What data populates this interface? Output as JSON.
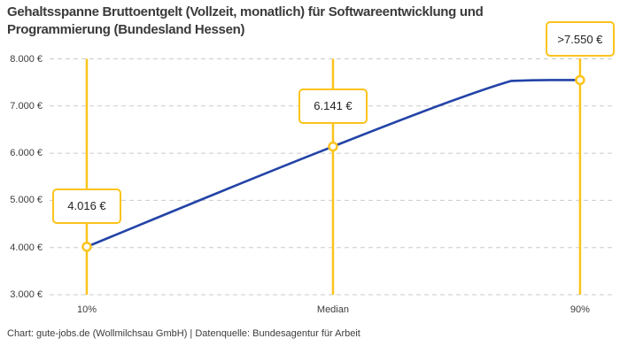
{
  "title": "Gehaltsspanne Bruttoentgelt (Vollzeit, monatlich) für Softwareentwicklung und Programmierung (Bundesland Hessen)",
  "credit": "Chart: gute-jobs.de (Wollmilchsau GmbH) | Datenquelle: Bundesagentur für Arbeit",
  "colors": {
    "accent_yellow": "#fbc31c",
    "line_blue": "#2343a7",
    "grid_gray": "#cbcbcb",
    "title_text": "#3a3a3a",
    "axis_text": "#3c3c3c",
    "label_text": "#222222",
    "background": "#ffffff"
  },
  "chart_data": {
    "type": "line",
    "categories": [
      "10%",
      "Median",
      "90%"
    ],
    "values": [
      4016,
      6141,
      7550
    ],
    "point_labels": [
      "4.016 €",
      "6.141 €",
      ">7.550 €"
    ],
    "last_value_capped": true,
    "y_tick_labels": [
      "8.000 €",
      "7.000 €",
      "6.000 €",
      "5.000 €",
      "4.000 €",
      "3.000 €"
    ],
    "y_tick_values": [
      8000,
      7000,
      6000,
      5000,
      4000,
      3000
    ],
    "ylim": [
      3000,
      8000
    ],
    "grid": "horizontal-dashed",
    "legend": "none",
    "marker_style": "open-circle",
    "vertical_rules_at_categories": true
  }
}
